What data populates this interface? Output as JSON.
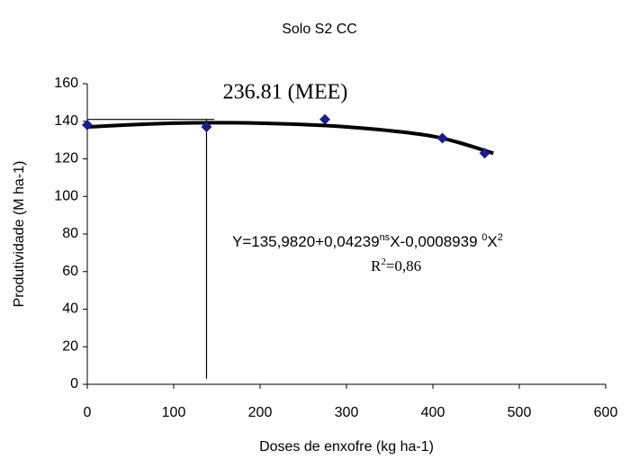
{
  "chart_data": {
    "type": "scatter",
    "title": "Solo S2 CC",
    "x_label": "Doses de enxofre (kg ha-1)",
    "y_label": "Produtividade (M ha-1)",
    "x": [
      0,
      138,
      275,
      411,
      460
    ],
    "values": [
      138,
      137,
      141,
      131,
      123
    ],
    "color": "#1c1c8a",
    "xlim": [
      0,
      600
    ],
    "xticks": [
      0,
      100,
      200,
      300,
      400,
      500,
      600
    ],
    "ylim": [
      0,
      160
    ],
    "yticks": [
      0,
      20,
      40,
      60,
      80,
      100,
      120,
      140,
      160
    ],
    "grid": false,
    "trendline": {
      "x": [
        0,
        100,
        200,
        300,
        400,
        470
      ],
      "values": [
        137,
        139,
        139,
        137,
        132,
        123
      ],
      "color": "#000000"
    },
    "reference_lines": [
      {
        "x": [
          0,
          147
        ],
        "values": [
          141,
          141
        ]
      },
      {
        "x": [
          138,
          138
        ],
        "values": [
          3,
          141
        ]
      }
    ],
    "annotation": "236.81 (MEE)",
    "equation": [
      "Y=135,9820+0,04239",
      "ns",
      "X-0,0008939 ",
      "0",
      "X",
      "2"
    ],
    "r_squared": [
      "R",
      "2",
      "=0,86"
    ]
  }
}
